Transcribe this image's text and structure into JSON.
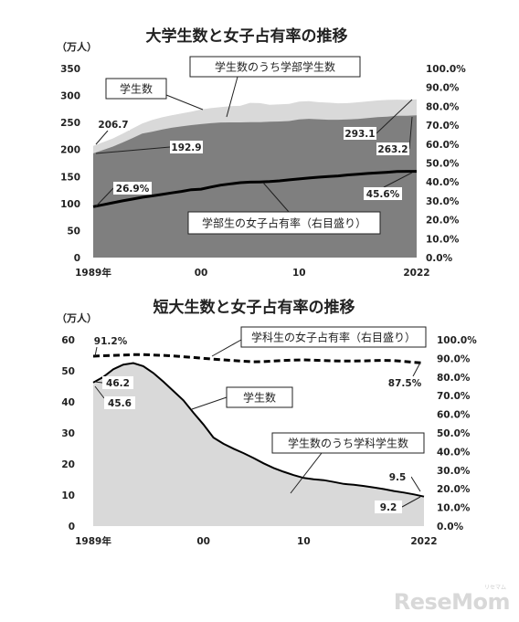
{
  "chart_data": [
    {
      "type": "area",
      "title": "大学生数と女子占有率の推移",
      "unit_left": "（万人）",
      "x_tick_labels": [
        "1989年",
        "00",
        "10",
        "2022"
      ],
      "x": [
        1989,
        1990,
        1991,
        1992,
        1993,
        1994,
        1995,
        1996,
        1997,
        1998,
        1999,
        2000,
        2001,
        2002,
        2003,
        2004,
        2005,
        2006,
        2007,
        2008,
        2009,
        2010,
        2011,
        2012,
        2013,
        2014,
        2015,
        2016,
        2017,
        2018,
        2019,
        2020,
        2021,
        2022
      ],
      "ylim": [
        0,
        350
      ],
      "y_ticks": [
        "0",
        "50",
        "100",
        "150",
        "200",
        "250",
        "300",
        "350"
      ],
      "y2lim": [
        0,
        100
      ],
      "y2_ticks": [
        "0.0%",
        "10.0%",
        "20.0%",
        "30.0%",
        "40.0%",
        "50.0%",
        "60.0%",
        "70.0%",
        "80.0%",
        "90.0%",
        "100.0%"
      ],
      "series": [
        {
          "name": "学生数",
          "axis": "left",
          "color": "#d9d9d9",
          "values": [
            206.7,
            213.3,
            220.5,
            229.3,
            238.9,
            248.1,
            254.7,
            259.6,
            263.4,
            266.8,
            270.1,
            274.0,
            276.6,
            278.6,
            280.4,
            280.9,
            286.5,
            285.9,
            282.8,
            283.6,
            284.5,
            288.7,
            289.4,
            287.6,
            286.8,
            285.5,
            286.0,
            287.4,
            289.1,
            290.9,
            291.9,
            292.3,
            291.8,
            293.1
          ]
        },
        {
          "name": "学生数のうち学部学生数",
          "axis": "left",
          "color": "#7f7f7f",
          "values": [
            192.9,
            199.1,
            205.5,
            213.0,
            221.2,
            229.4,
            233.0,
            236.8,
            240.2,
            242.8,
            245.2,
            247.1,
            248.7,
            250.0,
            250.3,
            250.3,
            250.5,
            250.5,
            251.4,
            252.0,
            252.7,
            255.9,
            256.9,
            256.0,
            255.1,
            255.2,
            255.6,
            256.7,
            258.2,
            259.9,
            260.9,
            262.4,
            262.6,
            263.2
          ]
        },
        {
          "name": "学部生の女子占有率（右目盛り）",
          "axis": "right",
          "color": "#000000",
          "values": [
            26.9,
            27.9,
            29.0,
            30.0,
            30.9,
            31.9,
            32.6,
            33.4,
            34.2,
            35.0,
            35.9,
            36.2,
            37.3,
            38.3,
            39.0,
            39.6,
            39.9,
            40.0,
            40.2,
            40.6,
            41.1,
            41.6,
            42.1,
            42.5,
            42.9,
            43.2,
            43.7,
            44.1,
            44.5,
            44.8,
            45.1,
            45.5,
            45.6,
            45.6
          ]
        }
      ],
      "data_labels": [
        "206.7",
        "192.9",
        "26.9%",
        "293.1",
        "263.2",
        "45.6%"
      ],
      "callouts": [
        "学生数のうち学部学生数",
        "学生数",
        "学部生の女子占有率（右目盛り）"
      ]
    },
    {
      "type": "area",
      "title": "短大生数と女子占有率の推移",
      "unit_left": "（万人）",
      "x_tick_labels": [
        "1989年",
        "00",
        "10",
        "2022"
      ],
      "x": [
        1989,
        1990,
        1991,
        1992,
        1993,
        1994,
        1995,
        1996,
        1997,
        1998,
        1999,
        2000,
        2001,
        2002,
        2003,
        2004,
        2005,
        2006,
        2007,
        2008,
        2009,
        2010,
        2011,
        2012,
        2013,
        2014,
        2015,
        2016,
        2017,
        2018,
        2019,
        2020,
        2021,
        2022
      ],
      "ylim": [
        0,
        60
      ],
      "y_ticks": [
        "0",
        "10",
        "20",
        "30",
        "40",
        "50",
        "60"
      ],
      "y2lim": [
        0,
        100
      ],
      "y2_ticks": [
        "0.0%",
        "10.0%",
        "20.0%",
        "30.0%",
        "40.0%",
        "50.0%",
        "60.0%",
        "70.0%",
        "80.0%",
        "90.0%",
        "100.0%"
      ],
      "series": [
        {
          "name": "学生数",
          "axis": "left",
          "color": "#000000",
          "values": [
            46.2,
            48.0,
            50.5,
            52.0,
            52.5,
            51.5,
            49.3,
            46.5,
            43.5,
            40.5,
            36.5,
            32.7,
            28.5,
            26.5,
            24.9,
            23.5,
            21.9,
            20.2,
            18.7,
            17.5,
            16.4,
            15.5,
            15.1,
            14.8,
            14.2,
            13.6,
            13.3,
            12.9,
            12.4,
            11.9,
            11.3,
            10.8,
            10.2,
            9.5
          ]
        },
        {
          "name": "学生数のうち学科学生数",
          "axis": "left",
          "color": "#d9d9d9",
          "values": [
            45.6,
            47.7,
            50.2,
            51.8,
            52.3,
            51.2,
            49.0,
            46.2,
            43.2,
            40.2,
            36.2,
            32.4,
            28.2,
            26.2,
            24.6,
            23.2,
            21.6,
            19.9,
            18.4,
            17.2,
            16.1,
            15.2,
            14.8,
            14.5,
            13.9,
            13.3,
            13.0,
            12.6,
            12.1,
            11.6,
            11.0,
            10.5,
            9.9,
            9.2
          ]
        },
        {
          "name": "学科生の女子占有率（右目盛り）",
          "axis": "right",
          "color": "#000000",
          "values": [
            91.2,
            91.4,
            91.6,
            91.8,
            92.0,
            92.0,
            91.8,
            91.6,
            91.3,
            90.9,
            90.5,
            90.0,
            89.6,
            89.2,
            88.8,
            88.5,
            88.2,
            88.3,
            88.6,
            88.9,
            89.1,
            89.2,
            89.0,
            88.8,
            88.7,
            88.6,
            88.6,
            88.7,
            88.8,
            88.9,
            88.8,
            88.4,
            87.9,
            87.5
          ]
        }
      ],
      "data_labels": [
        "91.2%",
        "46.2",
        "45.6",
        "87.5%",
        "9.5",
        "9.2"
      ],
      "callouts": [
        "学科生の女子占有率（右目盛り）",
        "学生数",
        "学生数のうち学科学生数"
      ]
    }
  ],
  "watermark": {
    "main": "ReseMom",
    "sub": "リセマム"
  }
}
